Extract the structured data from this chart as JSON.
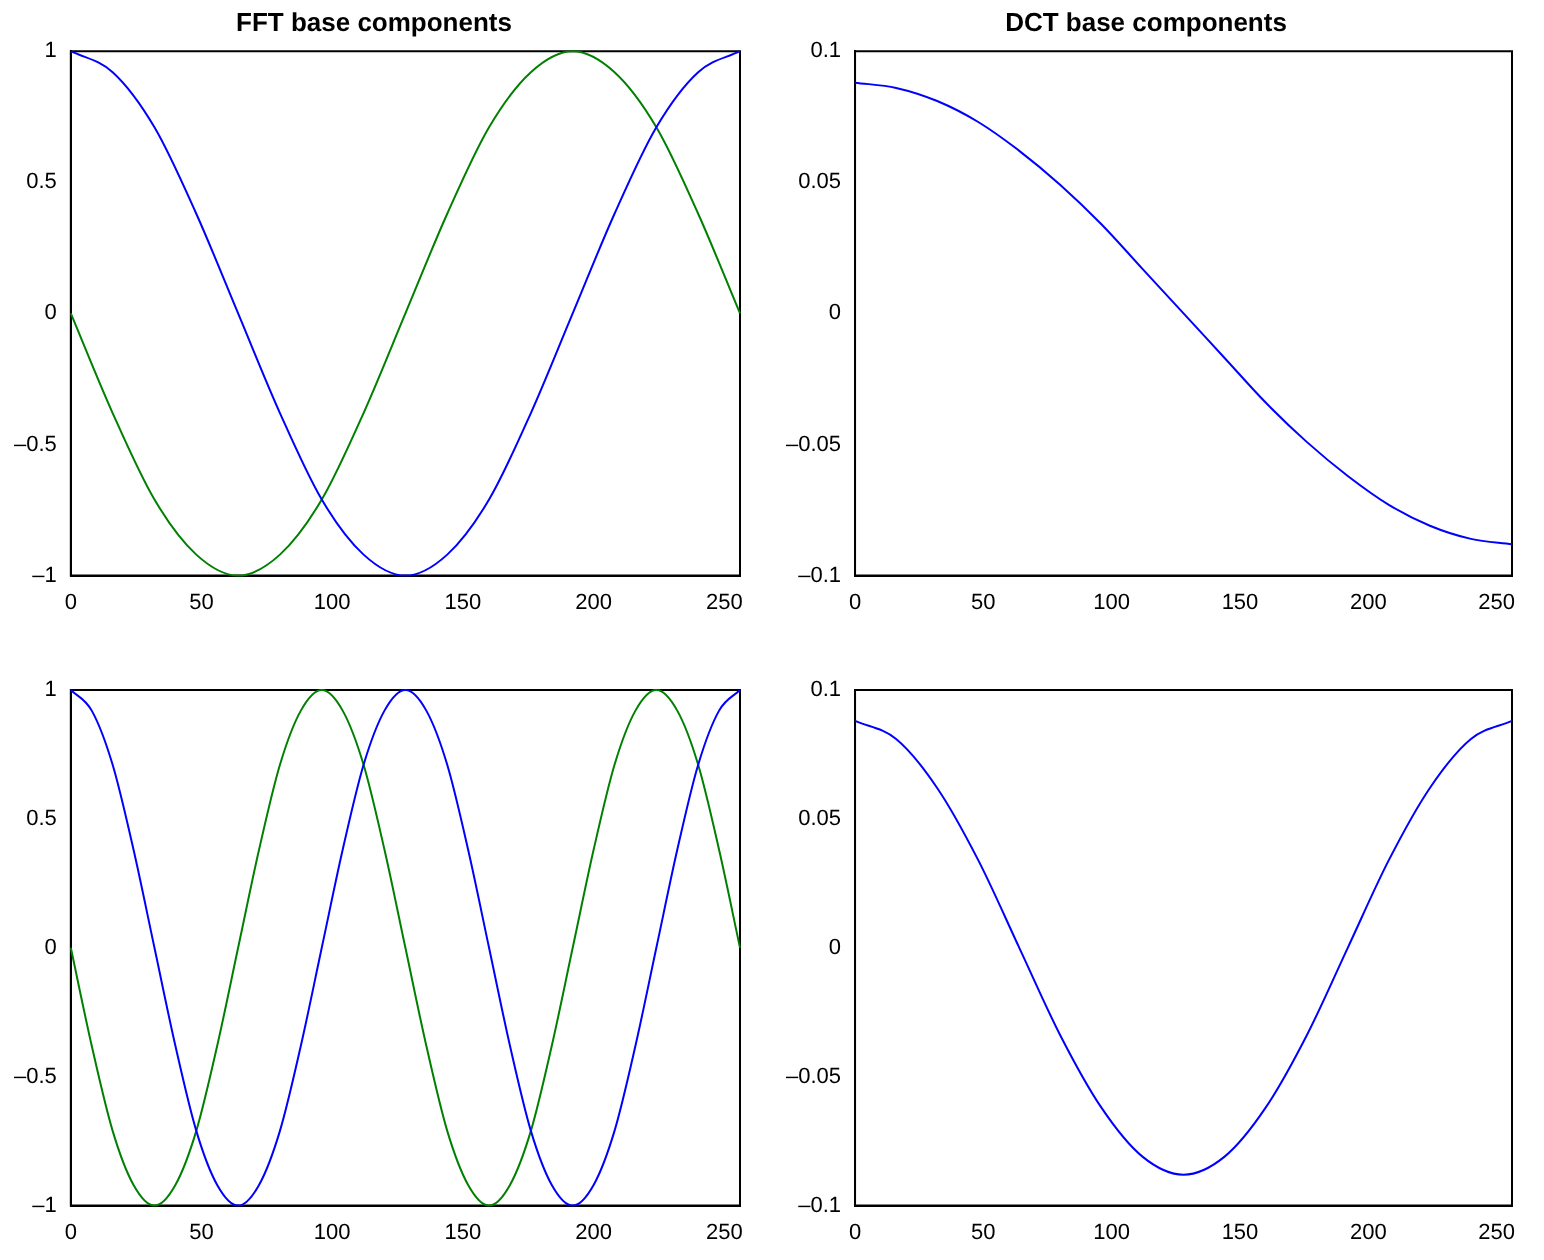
{
  "chart_data": [
    {
      "type": "line",
      "title": "FFT base components",
      "xlim": [
        0,
        256
      ],
      "xticks": [
        0,
        50,
        100,
        150,
        200,
        250
      ],
      "ylim": [
        -1,
        1
      ],
      "yticks": [
        {
          "value": -1,
          "label": "–1"
        },
        {
          "value": -0.5,
          "label": "–0.5"
        },
        0,
        0.5,
        1
      ],
      "grid": false,
      "legend": false,
      "marker": "none",
      "line_style": "solid",
      "x": [
        0,
        16,
        32,
        48,
        64,
        80,
        96,
        112,
        128,
        144,
        160,
        176,
        192,
        208,
        224,
        240,
        256
      ],
      "series": [
        {
          "color": "#0000ff",
          "values": [
            1,
            0.92,
            0.71,
            0.38,
            0,
            -0.38,
            -0.71,
            -0.92,
            -1,
            -0.92,
            -0.71,
            -0.38,
            0,
            0.38,
            0.71,
            0.92,
            1
          ]
        },
        {
          "color": "#008000",
          "values": [
            0,
            -0.38,
            -0.71,
            -0.92,
            -1,
            -0.92,
            -0.71,
            -0.38,
            0,
            0.38,
            0.71,
            0.92,
            1,
            0.92,
            0.71,
            0.38,
            0
          ]
        }
      ]
    },
    {
      "type": "line",
      "title": "DCT base components",
      "xlim": [
        0,
        256
      ],
      "xticks": [
        0,
        50,
        100,
        150,
        200,
        250
      ],
      "ylim": [
        -0.1,
        0.1
      ],
      "yticks": [
        {
          "value": -0.1,
          "label": "–0.1"
        },
        {
          "value": -0.05,
          "label": "–0.05"
        },
        0,
        0.05,
        0.1
      ],
      "grid": false,
      "legend": false,
      "marker": "none",
      "line_style": "solid",
      "x": [
        0,
        16,
        32,
        48,
        64,
        80,
        96,
        112,
        128,
        144,
        160,
        176,
        192,
        208,
        224,
        240,
        256
      ],
      "series": [
        {
          "color": "#0000ff",
          "values": [
            0.088,
            0.086,
            0.081,
            0.073,
            0.062,
            0.049,
            0.034,
            0.017,
            0,
            -0.017,
            -0.034,
            -0.049,
            -0.062,
            -0.073,
            -0.081,
            -0.086,
            -0.088
          ]
        }
      ]
    },
    {
      "type": "line",
      "xlim": [
        0,
        256
      ],
      "xticks": [
        0,
        50,
        100,
        150,
        200,
        250
      ],
      "ylim": [
        -1,
        1
      ],
      "yticks": [
        {
          "value": -1,
          "label": "–1"
        },
        {
          "value": -0.5,
          "label": "–0.5"
        },
        0,
        0.5,
        1
      ],
      "grid": false,
      "legend": false,
      "marker": "none",
      "line_style": "solid",
      "x": [
        0,
        8,
        16,
        24,
        32,
        40,
        48,
        56,
        64,
        72,
        80,
        88,
        96,
        104,
        112,
        120,
        128,
        136,
        144,
        152,
        160,
        168,
        176,
        184,
        192,
        200,
        208,
        216,
        224,
        232,
        240,
        248,
        256
      ],
      "series": [
        {
          "color": "#0000ff",
          "values": [
            1,
            0.92,
            0.71,
            0.38,
            0,
            -0.38,
            -0.71,
            -0.92,
            -1,
            -0.92,
            -0.71,
            -0.38,
            0,
            0.38,
            0.71,
            0.92,
            1,
            0.92,
            0.71,
            0.38,
            0,
            -0.38,
            -0.71,
            -0.92,
            -1,
            -0.92,
            -0.71,
            -0.38,
            0,
            0.38,
            0.71,
            0.92,
            1
          ]
        },
        {
          "color": "#008000",
          "values": [
            0,
            -0.38,
            -0.71,
            -0.92,
            -1,
            -0.92,
            -0.71,
            -0.38,
            0,
            0.38,
            0.71,
            0.92,
            1,
            0.92,
            0.71,
            0.38,
            0,
            -0.38,
            -0.71,
            -0.92,
            -1,
            -0.92,
            -0.71,
            -0.38,
            0,
            0.38,
            0.71,
            0.92,
            1,
            0.92,
            0.71,
            0.38,
            0
          ]
        }
      ]
    },
    {
      "type": "line",
      "xlim": [
        0,
        256
      ],
      "xticks": [
        0,
        50,
        100,
        150,
        200,
        250
      ],
      "ylim": [
        -0.1,
        0.1
      ],
      "yticks": [
        {
          "value": -0.1,
          "label": "–0.1"
        },
        {
          "value": -0.05,
          "label": "–0.05"
        },
        0,
        0.05,
        0.1
      ],
      "grid": false,
      "legend": false,
      "marker": "none",
      "line_style": "solid",
      "x": [
        0,
        16,
        32,
        48,
        64,
        80,
        96,
        112,
        128,
        144,
        160,
        176,
        192,
        208,
        224,
        240,
        256
      ],
      "series": [
        {
          "color": "#0000ff",
          "values": [
            0.088,
            0.081,
            0.062,
            0.034,
            0,
            -0.034,
            -0.062,
            -0.081,
            -0.088,
            -0.081,
            -0.062,
            -0.034,
            0,
            0.034,
            0.062,
            0.081,
            0.088
          ]
        }
      ]
    }
  ]
}
